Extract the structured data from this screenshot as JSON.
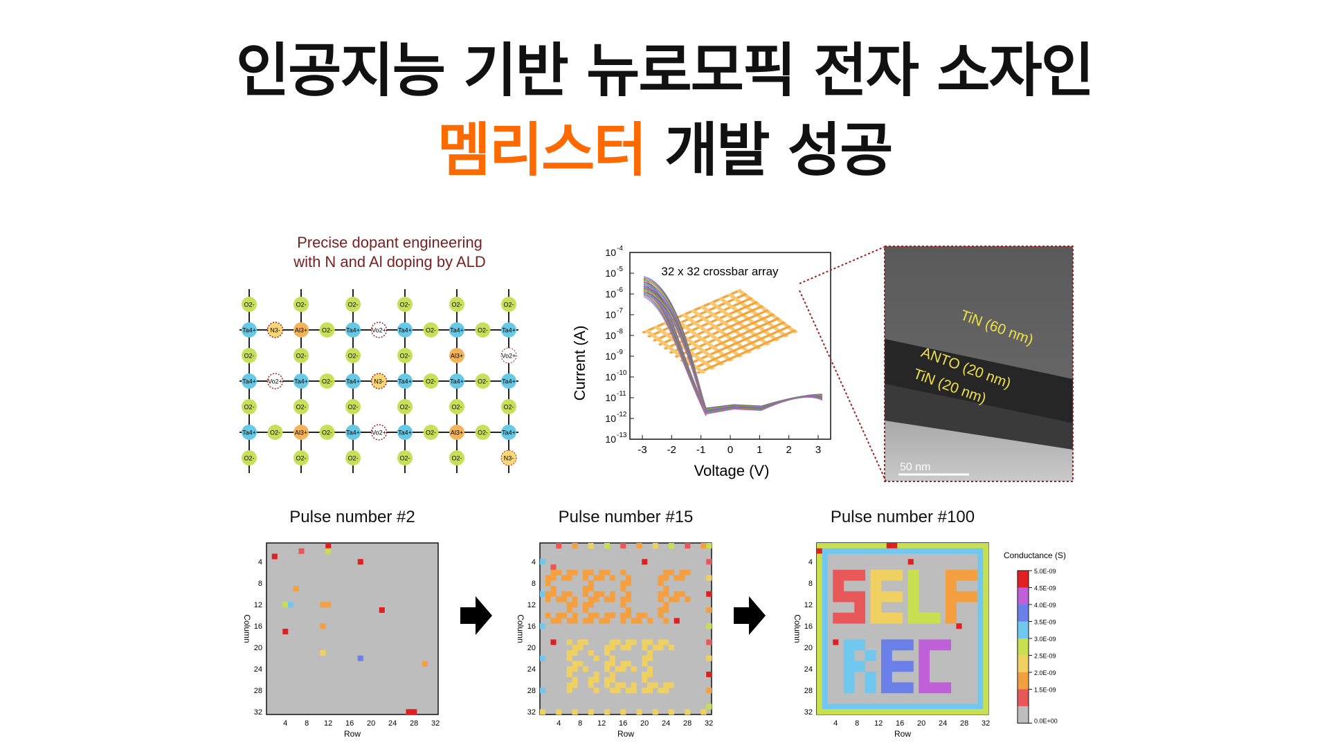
{
  "headline": {
    "line1": "인공지능 기반 뉴로모픽 전자 소자인",
    "line2_highlight": "멤리스터",
    "line2_rest": " 개발 성공",
    "highlight_color": "#ff6a00"
  },
  "lattice": {
    "title_line1": "Precise dopant engineering",
    "title_line2": "with N and Al doping by ALD",
    "row_types": [
      "O",
      "Ta",
      "O",
      "Ta",
      "O",
      "Ta",
      "O"
    ],
    "col_count": 6,
    "ta_row_labels": [
      [
        "Ta4+",
        "N3-",
        "Al3+",
        "O2-",
        "Ta4+",
        "Vo2+",
        "Ta4+",
        "O2-",
        "Ta4+",
        "O2-",
        "Ta4+"
      ],
      [
        "Ta4+",
        "Vo2+",
        "Ta4+",
        "O2-",
        "Ta4+",
        "N3-",
        "Ta4+",
        "O2-",
        "Ta4+",
        "O2-",
        "Ta4+"
      ],
      [
        "Ta4+",
        "O2-",
        "Al3+",
        "O2-",
        "Ta4+",
        "Vo2+",
        "Ta4+",
        "O2-",
        "Al3+",
        "O2-",
        "Ta4+"
      ]
    ],
    "o_label": "O2-",
    "special_o": [
      {
        "row": 2,
        "col": 4,
        "label": "Al3+"
      },
      {
        "row": 2,
        "col": 5,
        "label": "Vo2+"
      },
      {
        "row": 6,
        "col": 5,
        "label": "N3-"
      }
    ],
    "colors": {
      "o": "#c8df5a",
      "ta": "#67c9e6",
      "al": "#f3b35a",
      "n": "#f7d776"
    }
  },
  "iv_chart": {
    "annotation": "32 x 32 crossbar array",
    "xlabel": "Voltage (V)",
    "ylabel": "Current (A)",
    "x_ticks": [
      "-3",
      "-2",
      "-1",
      "0",
      "1",
      "2",
      "3"
    ],
    "y_tick_exponents": [
      "-4",
      "-5",
      "-6",
      "-7",
      "-8",
      "-9",
      "-10",
      "-11",
      "-12",
      "-13"
    ],
    "y_tick_base": "10"
  },
  "tem": {
    "layer1": "TiN (60 nm)",
    "layer2": "ANTO (20 nm)",
    "layer3": "TiN (20 nm)",
    "scale": "50 nm"
  },
  "heatmaps": [
    {
      "title": "Pulse number #2",
      "xlabel": "Row",
      "ylabel": "Column",
      "ticks": [
        "4",
        "8",
        "12",
        "16",
        "20",
        "24",
        "28",
        "32"
      ],
      "pattern": "sparse"
    },
    {
      "title": "Pulse number #15",
      "xlabel": "Row",
      "ylabel": "Column",
      "ticks": [
        "4",
        "8",
        "12",
        "16",
        "20",
        "24",
        "28",
        "32"
      ],
      "pattern": "partial"
    },
    {
      "title": "Pulse number #100",
      "xlabel": "Row",
      "ylabel": "Column",
      "ticks": [
        "4",
        "8",
        "12",
        "16",
        "20",
        "24",
        "28",
        "32"
      ],
      "pattern": "full"
    }
  ],
  "colorbar": {
    "title": "Conductance (S)",
    "labels": [
      "5.0E-09",
      "4.5E-09",
      "4.0E-09",
      "3.5E-09",
      "3.0E-09",
      "2.5E-09",
      "2.0E-09",
      "1.5E-09",
      "0.0E+00"
    ],
    "colors": [
      "#e02020",
      "#c060d8",
      "#6a7fe8",
      "#70c8f0",
      "#c8e050",
      "#f0d060",
      "#f5a040",
      "#e85858",
      "#bdbdbd"
    ]
  }
}
